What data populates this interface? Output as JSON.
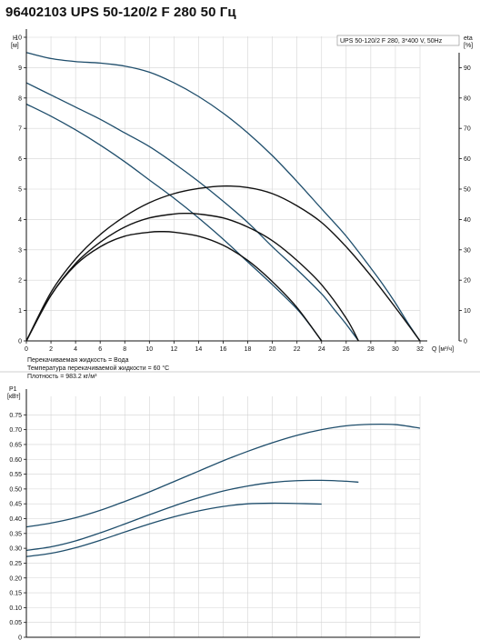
{
  "title": "96402103 UPS 50-120/2 F 280 50 Гц",
  "legend": "UPS 50-120/2 F 280, 3*400 V, 50Hz",
  "info": [
    "Перекачиваемая жидкость = Вода",
    "Температура перекачиваемой жидкости = 60 °C",
    "Плотность = 983.2 кг/м³"
  ],
  "colors": {
    "head_curve": "#1e4d6b",
    "eff_curve": "#111111",
    "power_curve": "#1e4d6b",
    "axis": "#111111"
  },
  "chart_data": [
    {
      "type": "line",
      "name": "head-and-efficiency",
      "ylabel": "H\n[м]",
      "y2label": "eta\n[%]",
      "xlabel": "Q [м³/ч]",
      "xlim": [
        0,
        32
      ],
      "ylim": [
        0,
        10
      ],
      "y2lim": [
        0,
        100
      ],
      "x_ticks": [
        0,
        2,
        4,
        6,
        8,
        10,
        12,
        14,
        16,
        18,
        20,
        22,
        24,
        26,
        28,
        30,
        32
      ],
      "y_ticks": [
        0,
        1,
        2,
        3,
        4,
        5,
        6,
        7,
        8,
        9,
        10
      ],
      "y2_ticks": [
        0,
        10,
        20,
        30,
        40,
        50,
        60,
        70,
        80,
        90
      ],
      "grid": true,
      "head_series": [
        {
          "x": [
            0,
            2,
            4,
            6,
            8,
            10,
            12,
            14,
            16,
            18,
            20,
            22,
            24,
            26,
            28,
            29,
            30,
            31,
            32
          ],
          "y": [
            9.5,
            9.3,
            9.2,
            9.15,
            9.05,
            8.85,
            8.5,
            8.05,
            7.5,
            6.85,
            6.1,
            5.25,
            4.35,
            3.45,
            2.4,
            1.85,
            1.25,
            0.6,
            0
          ]
        },
        {
          "x": [
            0,
            2,
            4,
            6,
            8,
            10,
            12,
            14,
            16,
            18,
            20,
            22,
            24,
            25,
            26,
            27
          ],
          "y": [
            8.5,
            8.1,
            7.7,
            7.3,
            6.85,
            6.4,
            5.85,
            5.25,
            4.6,
            3.9,
            3.1,
            2.35,
            1.55,
            1.05,
            0.55,
            0
          ]
        },
        {
          "x": [
            0,
            2,
            4,
            6,
            8,
            10,
            12,
            14,
            16,
            18,
            20,
            22,
            23,
            24
          ],
          "y": [
            7.8,
            7.4,
            6.95,
            6.45,
            5.9,
            5.3,
            4.7,
            4.05,
            3.35,
            2.6,
            1.85,
            1.05,
            0.55,
            0
          ]
        }
      ],
      "eff_series": [
        {
          "x": [
            0,
            2,
            4,
            6,
            8,
            10,
            12,
            14,
            16,
            18,
            20,
            22,
            24,
            26,
            28,
            30,
            32
          ],
          "y": [
            0,
            16,
            27,
            35,
            41,
            45.5,
            48.5,
            50.2,
            51,
            50.5,
            48.5,
            44.5,
            39,
            31,
            21.5,
            11,
            0
          ]
        },
        {
          "x": [
            0,
            2,
            4,
            6,
            8,
            10,
            12,
            13,
            14,
            16,
            18,
            20,
            22,
            24,
            26,
            27
          ],
          "y": [
            0,
            15,
            25.5,
            32.5,
            37.5,
            40.5,
            41.8,
            42,
            41.8,
            40.5,
            37.5,
            33,
            26.5,
            18.5,
            7.5,
            0
          ]
        },
        {
          "x": [
            0,
            2,
            4,
            6,
            8,
            10,
            11,
            12,
            14,
            16,
            18,
            20,
            22,
            24
          ],
          "y": [
            0,
            15,
            25,
            31,
            34.5,
            35.8,
            36,
            35.8,
            34.5,
            31.5,
            26.5,
            19.5,
            11,
            0
          ]
        }
      ]
    },
    {
      "type": "line",
      "name": "power",
      "ylabel": "P1\n[кВт]",
      "xlim": [
        0,
        32
      ],
      "ylim": [
        0,
        0.8
      ],
      "y_ticks": [
        0,
        0.05,
        0.1,
        0.15,
        0.2,
        0.25,
        0.3,
        0.35,
        0.4,
        0.45,
        0.5,
        0.55,
        0.6,
        0.65,
        0.7,
        0.75
      ],
      "y_tick_labels": [
        "0",
        "0.05",
        "0.10",
        "0.15",
        "0.20",
        "0.25",
        "0.30",
        "0.35",
        "0.40",
        "0.45",
        "0.50",
        "0.55",
        "0.60",
        "0.65",
        "0.70",
        "0.75"
      ],
      "grid": true,
      "series": [
        {
          "x": [
            0,
            2,
            4,
            6,
            8,
            10,
            12,
            14,
            16,
            18,
            20,
            22,
            24,
            26,
            28,
            30,
            32
          ],
          "y": [
            0.372,
            0.385,
            0.403,
            0.428,
            0.458,
            0.49,
            0.525,
            0.56,
            0.595,
            0.627,
            0.656,
            0.681,
            0.7,
            0.713,
            0.718,
            0.717,
            0.705
          ]
        },
        {
          "x": [
            0,
            2,
            4,
            6,
            8,
            10,
            12,
            14,
            16,
            18,
            20,
            22,
            24,
            26,
            27
          ],
          "y": [
            0.293,
            0.305,
            0.325,
            0.352,
            0.382,
            0.413,
            0.443,
            0.47,
            0.493,
            0.51,
            0.522,
            0.528,
            0.529,
            0.526,
            0.523
          ]
        },
        {
          "x": [
            0,
            2,
            4,
            6,
            8,
            10,
            12,
            14,
            16,
            18,
            20,
            22,
            24
          ],
          "y": [
            0.272,
            0.283,
            0.302,
            0.327,
            0.355,
            0.382,
            0.406,
            0.426,
            0.441,
            0.45,
            0.452,
            0.451,
            0.449
          ]
        }
      ]
    }
  ]
}
